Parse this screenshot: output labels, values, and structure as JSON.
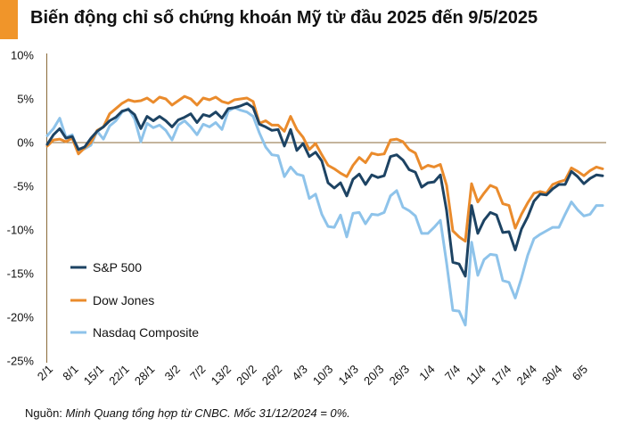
{
  "title": "Biến động chỉ số chứng khoán Mỹ từ đầu 2025 đến 9/5/2025",
  "source_label": "Nguồn:",
  "source_text": "Minh Quang tổng hợp từ CNBC. Mốc 31/12/2024 = 0%.",
  "colors": {
    "accent": "#f0952a",
    "sp500": "#1d4363",
    "dow": "#ea8b2c",
    "nasdaq": "#8ec3ea",
    "axis": "#8a6a3a"
  },
  "chart_data": {
    "type": "line",
    "title": "Biến động chỉ số chứng khoán Mỹ từ đầu 2025 đến 9/5/2025",
    "xlabel": "",
    "ylabel": "",
    "ylim": [
      -25,
      10
    ],
    "yticks": [
      10,
      5,
      0,
      -5,
      -10,
      -15,
      -20,
      -25
    ],
    "ytick_labels": [
      "10%",
      "5%",
      "0%",
      "-5%",
      "-10%",
      "-15%",
      "-20%",
      "-25%"
    ],
    "x_tick_labels": [
      "2/1",
      "8/1",
      "15/1",
      "22/1",
      "28/1",
      "3/2",
      "7/2",
      "13/2",
      "20/2",
      "26/2",
      "4/3",
      "10/3",
      "14/3",
      "20/3",
      "26/3",
      "1/4",
      "7/4",
      "11/4",
      "17/4",
      "24/4",
      "30/4",
      "6/5"
    ],
    "grid": false,
    "legend": {
      "position": "bottom-left",
      "entries": [
        "S&P 500",
        "Dow Jones",
        "Nasdaq Composite"
      ]
    },
    "series": [
      {
        "name": "S&P 500",
        "values": [
          -0.2,
          0.9,
          1.6,
          0.5,
          0.7,
          -0.8,
          -0.5,
          0.5,
          1.3,
          1.8,
          2.5,
          2.9,
          3.6,
          3.8,
          3.2,
          1.6,
          3.0,
          2.5,
          3.0,
          2.5,
          1.8,
          2.6,
          2.9,
          3.3,
          2.3,
          3.2,
          3.0,
          3.5,
          2.8,
          3.9,
          4.0,
          4.2,
          4.5,
          4.0,
          2.1,
          1.8,
          1.4,
          1.5,
          -0.4,
          1.5,
          -0.9,
          -0.1,
          -1.6,
          -1.1,
          -2.1,
          -4.6,
          -5.2,
          -4.6,
          -6.1,
          -4.2,
          -3.6,
          -4.8,
          -3.7,
          -4.0,
          -3.8,
          -1.6,
          -1.4,
          -2.0,
          -3.1,
          -3.4,
          -5.1,
          -4.6,
          -4.5,
          -3.7,
          -7.8,
          -13.7,
          -13.9,
          -15.3,
          -7.2,
          -10.4,
          -8.9,
          -8.0,
          -8.3,
          -10.3,
          -10.2,
          -12.3,
          -9.9,
          -8.5,
          -6.7,
          -5.9,
          -6.0,
          -5.3,
          -4.8,
          -4.8,
          -3.3,
          -3.9,
          -4.7,
          -4.1,
          -3.7,
          -3.8
        ]
      },
      {
        "name": "Dow Jones",
        "values": [
          -0.4,
          0.3,
          0.4,
          0.1,
          0.5,
          -1.3,
          -0.6,
          0.0,
          1.4,
          1.8,
          3.3,
          3.9,
          4.5,
          4.9,
          4.7,
          4.8,
          5.1,
          4.6,
          5.2,
          5.0,
          4.3,
          4.8,
          5.3,
          5.0,
          4.3,
          5.1,
          4.9,
          5.2,
          4.7,
          4.5,
          4.9,
          5.0,
          5.1,
          4.7,
          2.2,
          2.5,
          2.0,
          2.0,
          1.3,
          3.0,
          1.5,
          0.6,
          -0.8,
          -0.1,
          -1.4,
          -2.6,
          -3.0,
          -3.5,
          -3.9,
          -2.6,
          -1.7,
          -2.3,
          -1.2,
          -1.4,
          -1.3,
          0.3,
          0.4,
          0.1,
          -0.8,
          -1.2,
          -3.0,
          -2.6,
          -2.8,
          -2.5,
          -4.9,
          -10.1,
          -10.8,
          -11.3,
          -4.7,
          -6.8,
          -5.8,
          -4.9,
          -5.2,
          -7.0,
          -7.2,
          -9.8,
          -8.2,
          -6.9,
          -5.8,
          -5.6,
          -5.8,
          -4.8,
          -4.5,
          -4.3,
          -2.9,
          -3.3,
          -3.8,
          -3.2,
          -2.8,
          -3.0
        ]
      },
      {
        "name": "Nasdaq Composite",
        "values": [
          0.8,
          1.6,
          2.8,
          0.6,
          0.9,
          -1.0,
          -0.7,
          -0.3,
          1.3,
          0.4,
          1.9,
          2.5,
          3.5,
          3.9,
          2.7,
          0.1,
          2.2,
          1.7,
          2.0,
          1.4,
          0.3,
          2.0,
          2.5,
          1.8,
          0.9,
          2.1,
          1.8,
          2.3,
          1.5,
          3.6,
          4.0,
          3.7,
          3.5,
          3.0,
          1.1,
          -0.5,
          -1.4,
          -1.5,
          -3.9,
          -2.8,
          -3.6,
          -3.8,
          -6.4,
          -5.9,
          -8.2,
          -9.6,
          -9.7,
          -8.3,
          -10.8,
          -8.1,
          -8.0,
          -9.3,
          -8.2,
          -8.3,
          -8.0,
          -6.1,
          -5.5,
          -7.4,
          -7.8,
          -8.4,
          -10.4,
          -10.4,
          -9.7,
          -8.9,
          -13.8,
          -19.2,
          -19.3,
          -20.9,
          -11.4,
          -15.2,
          -13.4,
          -12.8,
          -12.9,
          -15.8,
          -16.0,
          -17.8,
          -15.5,
          -12.9,
          -11.0,
          -10.5,
          -10.1,
          -9.7,
          -9.7,
          -8.2,
          -6.8,
          -7.7,
          -8.4,
          -8.2,
          -7.2,
          -7.2
        ]
      }
    ]
  }
}
